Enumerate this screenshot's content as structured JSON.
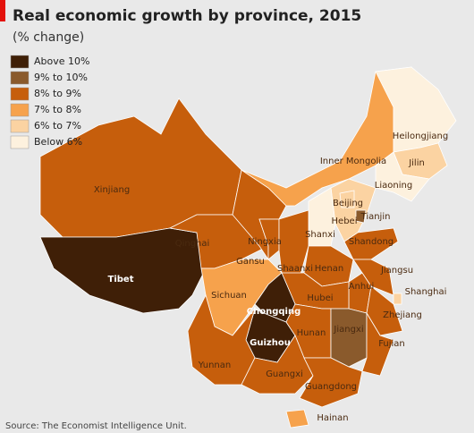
{
  "header": {
    "title": "Real economic growth by province, 2015",
    "subtitle": "(% change)"
  },
  "legend": {
    "items": [
      {
        "label": "Above 10%",
        "color": "#3f1f07"
      },
      {
        "label": "9% to 10%",
        "color": "#8a5a2c"
      },
      {
        "label": "8% to 9%",
        "color": "#c65e0c"
      },
      {
        "label": "7% to 8%",
        "color": "#f6a24c"
      },
      {
        "label": "6% to 7%",
        "color": "#fbd3a2"
      },
      {
        "label": "Below 6%",
        "color": "#fdf1de"
      }
    ]
  },
  "provinces": [
    {
      "name": "Xinjiang",
      "color": "#c65e0c"
    },
    {
      "name": "Tibet",
      "color": "#3f1f07"
    },
    {
      "name": "Qinghai",
      "color": "#c65e0c"
    },
    {
      "name": "Gansu",
      "color": "#c65e0c"
    },
    {
      "name": "Inner Mongolia",
      "color": "#f6a24c"
    },
    {
      "name": "Heilongjiang",
      "color": "#fdf1de"
    },
    {
      "name": "Jilin",
      "color": "#fbd3a2"
    },
    {
      "name": "Liaoning",
      "color": "#fdf1de"
    },
    {
      "name": "Hebei",
      "color": "#fbd3a2"
    },
    {
      "name": "Beijing",
      "color": "#fbd3a2"
    },
    {
      "name": "Tianjin",
      "color": "#8a5a2c"
    },
    {
      "name": "Shanxi",
      "color": "#fdf1de"
    },
    {
      "name": "Ningxia",
      "color": "#c65e0c"
    },
    {
      "name": "Shaanxi",
      "color": "#c65e0c"
    },
    {
      "name": "Shandong",
      "color": "#c65e0c"
    },
    {
      "name": "Henan",
      "color": "#c65e0c"
    },
    {
      "name": "Jiangsu",
      "color": "#c65e0c"
    },
    {
      "name": "Anhui",
      "color": "#c65e0c"
    },
    {
      "name": "Shanghai",
      "color": "#fbd3a2"
    },
    {
      "name": "Zhejiang",
      "color": "#c65e0c"
    },
    {
      "name": "Hubei",
      "color": "#c65e0c"
    },
    {
      "name": "Sichuan",
      "color": "#f6a24c"
    },
    {
      "name": "Chongqing",
      "color": "#3f1f07"
    },
    {
      "name": "Guizhou",
      "color": "#3f1f07"
    },
    {
      "name": "Yunnan",
      "color": "#c65e0c"
    },
    {
      "name": "Hunan",
      "color": "#c65e0c"
    },
    {
      "name": "Jiangxi",
      "color": "#8a5a2c"
    },
    {
      "name": "Fujian",
      "color": "#c65e0c"
    },
    {
      "name": "Guangxi",
      "color": "#c65e0c"
    },
    {
      "name": "Guangdong",
      "color": "#c65e0c"
    },
    {
      "name": "Hainan",
      "color": "#f6a24c"
    }
  ],
  "source": "Source: The Economist Intelligence Unit."
}
